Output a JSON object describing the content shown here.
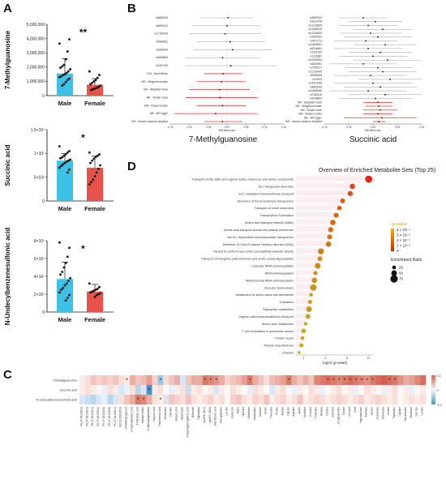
{
  "panels": {
    "A": "A",
    "B": "B",
    "C": "C",
    "D": "D"
  },
  "colors": {
    "male": "#3ec1e6",
    "female": "#e8524a",
    "forest_sig": "#e53935",
    "forest_ns": "#999999",
    "dot_low": "#d4c21a",
    "dot_high": "#e81b12",
    "heat_pos": "#d6604d",
    "heat_neg": "#4393c3"
  },
  "chart_data": [
    {
      "id": "A1",
      "type": "bar",
      "ylabel": "7-Methylguanosine",
      "categories": [
        "Male",
        "Female"
      ],
      "values": [
        1550000,
        760000
      ],
      "errors": [
        1050000,
        430000
      ],
      "yticks": [
        "0",
        "1,000,000",
        "2,000,000",
        "3,000,000",
        "4,000,000",
        "5,000,000"
      ],
      "ylim": [
        0,
        5000000
      ],
      "significance": "**",
      "points": [
        [
          3650000,
          3950000,
          3100000,
          2550000,
          2150000,
          2050000,
          1950000,
          1850000,
          1700000,
          1600000,
          1500000,
          1450000,
          1350000,
          1300000,
          1200000,
          1100000,
          950000,
          800000,
          700000
        ],
        [
          1700000,
          1450000,
          1250000,
          1100000,
          1000000,
          900000,
          800000,
          700000,
          600000,
          550000,
          500000,
          450000,
          400000
        ]
      ]
    },
    {
      "id": "A2",
      "type": "bar",
      "ylabel": "Succinic acid",
      "categories": [
        "Male",
        "Female"
      ],
      "values": [
        8500000,
        7000000
      ],
      "errors": [
        1500000,
        2400000
      ],
      "yticks": [
        "0",
        "5×10⁶",
        "1×10⁷",
        "1.5×10⁷"
      ],
      "ylim": [
        0,
        15000000
      ],
      "significance": "*",
      "points": [
        [
          11500000,
          10500000,
          10200000,
          9800000,
          9500000,
          9200000,
          9000000,
          8700000,
          8500000,
          8300000,
          8000000,
          7700000,
          7400000,
          7000000,
          6600000,
          6000000
        ],
        [
          10200000,
          9800000,
          9500000,
          9300000,
          8900000,
          8500000,
          8000000,
          7500000,
          6800000,
          6000000,
          5200000,
          4500000,
          4000000,
          3500000
        ]
      ]
    },
    {
      "id": "A3",
      "type": "bar",
      "ylabel": "N-Undecylbenzenesulfonic acid",
      "categories": [
        "Male",
        "Female"
      ],
      "values": [
        37000000,
        23000000
      ],
      "errors": [
        19000000,
        8000000
      ],
      "yticks": [
        "0",
        "2×10⁷",
        "4×10⁷",
        "6×10⁷",
        "8×10⁷"
      ],
      "ylim": [
        0,
        80000000
      ],
      "significance": "*",
      "points": [
        [
          78000000,
          72000000,
          62000000,
          55000000,
          50000000,
          45000000,
          42000000,
          38000000,
          35000000,
          32000000,
          30000000,
          27000000,
          25000000,
          22000000,
          19000000,
          16000000,
          13000000
        ],
        [
          32000000,
          28000000,
          26000000,
          25000000,
          24000000,
          23000000,
          22000000,
          21000000,
          20000000,
          19000000,
          17000000
        ]
      ]
    },
    {
      "id": "B1",
      "type": "scatter",
      "subtype": "forest",
      "xlabel": "7-Methylguanosine",
      "axis_label": "MR effect size",
      "xticks": [
        "-0.15",
        "-0.10",
        "-0.05",
        "0.00",
        "0.05",
        "0.10",
        "0.15"
      ],
      "xlim": [
        -0.15,
        0.15
      ],
      "rows": [
        {
          "label": "rs6865155",
          "est": 0.003,
          "lo": -0.07,
          "hi": 0.07,
          "sig": false
        },
        {
          "label": "rs6895123",
          "est": 0.0,
          "lo": -0.09,
          "hi": 0.09,
          "sig": false
        },
        {
          "label": "rs17154193",
          "est": -0.005,
          "lo": -0.1,
          "hi": 0.09,
          "sig": false
        },
        {
          "label": "rs4984831",
          "est": 0.008,
          "lo": -0.08,
          "hi": 0.1,
          "sig": false
        },
        {
          "label": "rs1805944",
          "est": 0.015,
          "lo": -0.09,
          "hi": 0.12,
          "sig": false
        },
        {
          "label": "rs2805695",
          "est": -0.012,
          "lo": -0.11,
          "hi": 0.09,
          "sig": false
        },
        {
          "label": "rs2287190",
          "est": 0.01,
          "lo": -0.11,
          "hi": 0.13,
          "sig": false
        },
        {
          "label": "IVW - fixed effects",
          "est": -0.01,
          "lo": -0.06,
          "hi": 0.04,
          "sig": true
        },
        {
          "label": "MR - Weighted median",
          "est": -0.015,
          "lo": -0.08,
          "hi": 0.05,
          "sig": true
        },
        {
          "label": "MR - Weighted mode",
          "est": -0.02,
          "lo": -0.1,
          "hi": 0.06,
          "sig": true
        },
        {
          "label": "MR - Simple mode",
          "est": -0.018,
          "lo": -0.11,
          "hi": 0.08,
          "sig": true
        },
        {
          "label": "MR - Simple median",
          "est": -0.012,
          "lo": -0.08,
          "hi": 0.05,
          "sig": true
        },
        {
          "label": "MR - MR Egger",
          "est": -0.03,
          "lo": -0.14,
          "hi": 0.08,
          "sig": true
        },
        {
          "label": "MR - Inverse variance weighted",
          "est": -0.012,
          "lo": -0.06,
          "hi": 0.04,
          "sig": true
        }
      ]
    },
    {
      "id": "B2",
      "type": "scatter",
      "subtype": "forest",
      "xlabel": "Succinic acid",
      "axis_label": "MR effect size",
      "xticks": [
        "-0.10",
        "-0.05",
        "0.00",
        "0.05",
        "0.10"
      ],
      "xlim": [
        -0.1,
        0.1
      ],
      "rows": [
        {
          "label": "rs4969163",
          "est": -0.02,
          "lo": -0.07,
          "hi": 0.03,
          "sig": false
        },
        {
          "label": "rs1814795",
          "est": 0.005,
          "lo": -0.05,
          "hi": 0.06,
          "sig": false
        },
        {
          "label": "rs11218305",
          "est": -0.01,
          "lo": -0.07,
          "hi": 0.05,
          "sig": false
        },
        {
          "label": "rs11655018",
          "est": 0.02,
          "lo": -0.04,
          "hi": 0.08,
          "sig": false
        },
        {
          "label": "rs12346633",
          "est": -0.005,
          "lo": -0.07,
          "hi": 0.06,
          "sig": false
        },
        {
          "label": "rs1950352",
          "est": 0.01,
          "lo": -0.06,
          "hi": 0.08,
          "sig": false
        },
        {
          "label": "rs4971711",
          "est": -0.015,
          "lo": -0.08,
          "hi": 0.05,
          "sig": false
        },
        {
          "label": "rs10835861",
          "est": 0.025,
          "lo": -0.04,
          "hi": 0.09,
          "sig": false
        },
        {
          "label": "rs2016681",
          "est": -0.01,
          "lo": -0.08,
          "hi": 0.06,
          "sig": false
        },
        {
          "label": "rs1541390",
          "est": 0.015,
          "lo": -0.05,
          "hi": 0.08,
          "sig": false
        },
        {
          "label": "rs1100887",
          "est": 0.0,
          "lo": -0.07,
          "hi": 0.07,
          "sig": false
        },
        {
          "label": "rs13259006",
          "est": 0.03,
          "lo": -0.04,
          "hi": 0.1,
          "sig": false
        },
        {
          "label": "rs1004961",
          "est": -0.02,
          "lo": -0.09,
          "hi": 0.05,
          "sig": false
        },
        {
          "label": "rs7165117",
          "est": 0.01,
          "lo": -0.06,
          "hi": 0.08,
          "sig": false
        },
        {
          "label": "rs12160049",
          "est": 0.02,
          "lo": -0.05,
          "hi": 0.09,
          "sig": false
        },
        {
          "label": "rs9398285",
          "est": -0.005,
          "lo": -0.08,
          "hi": 0.07,
          "sig": false
        },
        {
          "label": "rs10000",
          "est": 0.035,
          "lo": -0.03,
          "hi": 0.1,
          "sig": false
        },
        {
          "label": "rs11614096",
          "est": 0.0,
          "lo": -0.08,
          "hi": 0.08,
          "sig": false
        },
        {
          "label": "rs4862066",
          "est": 0.015,
          "lo": -0.06,
          "hi": 0.09,
          "sig": false
        },
        {
          "label": "rs10866066",
          "est": -0.01,
          "lo": -0.09,
          "hi": 0.07,
          "sig": false
        },
        {
          "label": "rs7159116",
          "est": 0.025,
          "lo": -0.05,
          "hi": 0.1,
          "sig": false
        },
        {
          "label": "rs1048802",
          "est": 0.005,
          "lo": -0.07,
          "hi": 0.08,
          "sig": false
        },
        {
          "label": "MR - Weighted mode",
          "est": 0.01,
          "lo": -0.02,
          "hi": 0.04,
          "sig": true
        },
        {
          "label": "MR - Weighted median",
          "est": 0.012,
          "lo": -0.015,
          "hi": 0.04,
          "sig": true
        },
        {
          "label": "MR - Simple mode",
          "est": 0.015,
          "lo": -0.02,
          "hi": 0.05,
          "sig": true
        },
        {
          "label": "MR - Simple median",
          "est": 0.01,
          "lo": -0.02,
          "hi": 0.04,
          "sig": true
        },
        {
          "label": "MR - MR Egger",
          "est": 0.018,
          "lo": -0.06,
          "hi": 0.09,
          "sig": true
        },
        {
          "label": "MR - Inverse variance weighted",
          "est": 0.012,
          "lo": 0.0,
          "hi": 0.025,
          "sig": true
        }
      ]
    },
    {
      "id": "D",
      "type": "scatter",
      "subtype": "dot",
      "title": "Overview of Enriched Metabolite Sets (Top 25)",
      "xlabel": "-log10 (p-value)",
      "xticks": [
        "4",
        "6",
        "8",
        "10"
      ],
      "xlim": [
        3.3,
        10.4
      ],
      "legend_title": "p-value",
      "legend_ticks": [
        "4 × 10⁻⁴",
        "3 × 10⁻⁴",
        "2 × 10⁻⁴",
        "1 × 10⁻⁴",
        "0"
      ],
      "size_title": "Enrichment Ratio",
      "size_ticks": [
        "25",
        "50",
        "75"
      ],
      "rows": [
        {
          "label": "Transport of bile salts and organic acids, metal ions and amine compounds",
          "x": 10.0,
          "ratio": 70
        },
        {
          "label": "SLC transporter disorders",
          "x": 8.5,
          "ratio": 45
        },
        {
          "label": "SLC-mediated transmembrane transport",
          "x": 8.3,
          "ratio": 42
        },
        {
          "label": "Disorders of transmembrane transporters",
          "x": 7.6,
          "ratio": 38
        },
        {
          "label": "Transport of small molecules",
          "x": 7.3,
          "ratio": 34
        },
        {
          "label": "Transcription/Translation",
          "x": 7.0,
          "ratio": 40
        },
        {
          "label": "Amino acid transport defects (AMD)",
          "x": 6.7,
          "ratio": 48
        },
        {
          "label": "Amine acid transport across the plasma membrane",
          "x": 6.5,
          "ratio": 44
        },
        {
          "label": "Na+/Cl- dependent neurotransmitter transporters",
          "x": 6.4,
          "ratio": 42
        },
        {
          "label": "Defective SLC6A19 causes Hartnup disorder (HND)",
          "x": 6.3,
          "ratio": 46
        },
        {
          "label": "Variant SLC6A14 may confer susceptibility towards obesity",
          "x": 5.6,
          "ratio": 55
        },
        {
          "label": "Transport of inorganic cations/anions and amino acids/oligopeptides",
          "x": 5.5,
          "ratio": 36
        },
        {
          "label": "Cytosolic tRNA aminoacylation",
          "x": 5.3,
          "ratio": 50
        },
        {
          "label": "tRNA Aminoacylation",
          "x": 5.1,
          "ratio": 30
        },
        {
          "label": "Mitochondrial tRNA aminoacylation",
          "x": 5.0,
          "ratio": 48
        },
        {
          "label": "Glucose homeostasis",
          "x": 4.9,
          "ratio": 60
        },
        {
          "label": "Metabolism of amino acids and derivatives",
          "x": 4.7,
          "ratio": 22
        },
        {
          "label": "Transation",
          "x": 4.6,
          "ratio": 28
        },
        {
          "label": "Tryptophan catabolism",
          "x": 4.5,
          "ratio": 52
        },
        {
          "label": "Organic cation/anion/zwitterion transport",
          "x": 4.4,
          "ratio": 40
        },
        {
          "label": "Amino acid metabolism",
          "x": 4.2,
          "ratio": 20
        },
        {
          "label": "T cell modulation in pancreatic cancer",
          "x": 4.0,
          "ratio": 35
        },
        {
          "label": "Protein repair",
          "x": 3.9,
          "ratio": 25
        },
        {
          "label": "Pleural mesothelioma",
          "x": 3.8,
          "ratio": 30
        },
        {
          "label": "Disease",
          "x": 3.6,
          "ratio": 12
        }
      ]
    },
    {
      "id": "C",
      "type": "heatmap",
      "rows": [
        "7-Methylguanosine",
        "Succinic acid",
        "N-Undecylbenzenesulfonic acid"
      ],
      "legend_ticks": [
        "0.3",
        "0",
        "-0.3"
      ],
      "columns": [
        "PE (P-16:0/20:4)",
        "PE (P-18:0/20:4)",
        "PE (P-18:1/20:4)",
        "PE (P-16:0/22:6)",
        "PE (P-18:0/22:6)",
        "PE (P-18:1/22:6)",
        "PC (P-16:0/20:4)",
        "MG (0:0/18:2/0:0)",
        "1-Palmitoyl-glycerol",
        "2-Hydroxybutyric acid",
        "4-Pyridoxic acid",
        "Indoxyl sulfate",
        "5-Hydroxytryptophan",
        "Hippuric acid",
        "Pantothenic acid",
        "Methionine",
        "Citrulline",
        "Glutaric acid",
        "Kynurenine",
        "4-Hydroxyphenyllactic acid",
        "Biliverdin",
        "Tryptophan",
        "LysoPE (18:2)",
        "LysoPC (16:0)",
        "Arachidonic acid",
        "Phenylalanine",
        "Leucine",
        "Isoleucine",
        "Valine",
        "Tyrosine",
        "Glutamine",
        "Asparagine",
        "Histidine",
        "Serine",
        "Threonine",
        "Proline",
        "Alanine",
        "Glycine",
        "Arginine",
        "Lysine",
        "Ornithine",
        "Creatine",
        "Creatinine",
        "Betaine",
        "Choline",
        "Carnitine",
        "Acetylcarnitine",
        "Taurine",
        "Uric acid",
        "Urea",
        "Hypoxanthine",
        "Xanthine",
        "Inosine",
        "Guanosine",
        "Adenosine",
        "Uridine",
        "Thymidine",
        "Cytidine",
        "Niacinamide",
        "Riboflavin",
        "Glucose",
        "Lactate"
      ],
      "values": [
        [
          0.05,
          0.1,
          0.2,
          0.15,
          0.2,
          0.15,
          0.2,
          0.1,
          0.05,
          0.3,
          0.2,
          0.25,
          0.35,
          0.15,
          -0.3,
          0.1,
          0.2,
          0.3,
          -0.1,
          0.2,
          0.3,
          0.3,
          0.5,
          0.45,
          0.4,
          0.3,
          0.15,
          0.2,
          0.25,
          0.35,
          0.5,
          0.3,
          0.2,
          0.1,
          0.25,
          0.3,
          0.35,
          0.5,
          0.3,
          0.2,
          0.3,
          0.2,
          0.45,
          0.5,
          0.55,
          0.5,
          0.45,
          0.5,
          0.55,
          0.5,
          0.45,
          0.4,
          0.5,
          0.55,
          0.6,
          0.55,
          0.5,
          0.4,
          0.3,
          0.35,
          0.45,
          0.55
        ],
        [
          0.05,
          0.1,
          0.05,
          0.02,
          -0.05,
          0.1,
          0.05,
          -0.1,
          -0.05,
          0.1,
          -0.2,
          -0.1,
          -0.6,
          0.05,
          0.1,
          0.0,
          -0.05,
          0.05,
          0.1,
          -0.15,
          0.05,
          0.1,
          0.0,
          0.05,
          -0.1,
          0.05,
          0.0,
          0.1,
          0.05,
          0.0,
          -0.05,
          0.1,
          0.05,
          0.0,
          -0.1,
          0.05,
          0.1,
          0.0,
          -0.05,
          0.05,
          0.0,
          0.1,
          0.05,
          -0.05,
          0.0,
          0.05,
          0.1,
          0.0,
          0.05,
          -0.05,
          0.0,
          0.1,
          0.05,
          0.0,
          -0.05,
          0.05,
          0.1,
          0.0,
          0.05,
          -0.05,
          0.0,
          0.05
        ],
        [
          -0.1,
          -0.15,
          -0.2,
          -0.1,
          -0.05,
          -0.2,
          -0.1,
          0.1,
          0.2,
          0.3,
          0.5,
          0.45,
          0.3,
          0.1,
          0.05,
          -0.1,
          0.2,
          0.15,
          0.1,
          0.2,
          0.1,
          0.05,
          0.1,
          0.15,
          0.05,
          0.1,
          0.0,
          0.15,
          0.2,
          0.1,
          0.05,
          0.15,
          0.1,
          0.2,
          0.05,
          0.1,
          0.15,
          0.05,
          0.1,
          0.2,
          0.05,
          0.1,
          0.15,
          0.1,
          0.05,
          0.1,
          0.15,
          0.1,
          0.05,
          0.1,
          0.15,
          0.05,
          0.1,
          0.15,
          0.1,
          0.05,
          0.1,
          0.0,
          0.05,
          0.1,
          0.05,
          0.1
        ]
      ],
      "sig_row0": [
        8,
        14,
        22,
        23,
        24,
        30,
        37,
        44,
        45,
        46,
        47,
        48,
        49,
        50,
        51,
        52,
        55,
        56
      ],
      "sig_row1": [
        12
      ],
      "sig_row2": [
        10,
        11,
        14
      ]
    }
  ]
}
